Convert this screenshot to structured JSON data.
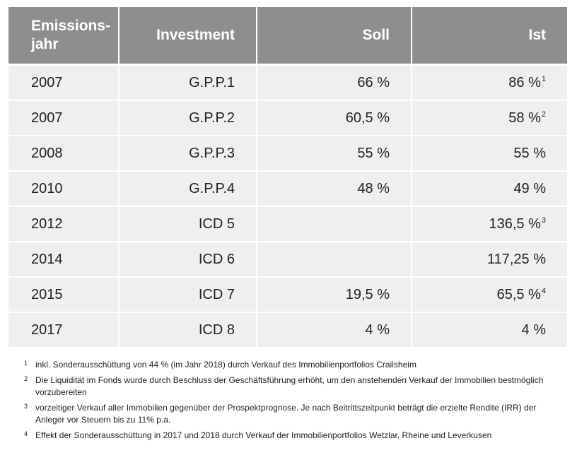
{
  "table": {
    "headers": {
      "year": "Emissions-\njahr",
      "year_line1": "Emissions-",
      "year_line2": "jahr",
      "investment": "Investment",
      "soll": "Soll",
      "ist": "Ist"
    },
    "rows": [
      {
        "year": "2007",
        "investment": "G.P.P.1",
        "soll": "66 %",
        "ist": "86 %",
        "ist_fn": "1"
      },
      {
        "year": "2007",
        "investment": "G.P.P.2",
        "soll": "60,5 %",
        "ist": "58 %",
        "ist_fn": "2"
      },
      {
        "year": "2008",
        "investment": "G.P.P.3",
        "soll": "55 %",
        "ist": "55 %",
        "ist_fn": ""
      },
      {
        "year": "2010",
        "investment": "G.P.P.4",
        "soll": "48 %",
        "ist": "49 %",
        "ist_fn": ""
      },
      {
        "year": "2012",
        "investment": "ICD 5",
        "soll": "",
        "ist": "136,5 %",
        "ist_fn": "3"
      },
      {
        "year": "2014",
        "investment": "ICD 6",
        "soll": "",
        "ist": "117,25 %",
        "ist_fn": ""
      },
      {
        "year": "2015",
        "investment": "ICD 7",
        "soll": "19,5 %",
        "ist": "65,5 %",
        "ist_fn": "4"
      },
      {
        "year": "2017",
        "investment": "ICD 8",
        "soll": "4 %",
        "ist": "4 %",
        "ist_fn": ""
      }
    ]
  },
  "footnotes": [
    {
      "num": "1",
      "text": "inkl. Sonderausschüttung von 44 % (im Jahr 2018) durch Verkauf des Immobilienportfolios Crailsheim"
    },
    {
      "num": "2",
      "text": "Die Liquidität im Fonds wurde durch Beschluss der Geschäftsführung erhöht, um den anstehenden Verkauf der Immobilien bestmöglich vorzubereiten"
    },
    {
      "num": "3",
      "text": "vorzeitiger Verkauf aller Immobilien gegenüber der Prospektprognose. Je nach Beitrittszeitpunkt beträgt die erzielte Rendite (IRR) der Anleger vor Steuern bis zu 11% p.a."
    },
    {
      "num": "4",
      "text": "Effekt der Sonderausschüttung in 2017 und 2018 durch Verkauf der Immobilienportfolios Wetzlar, Rheine und Leverkusen"
    }
  ],
  "colors": {
    "header_bg": "#8e8e8e",
    "row_bg": "#efefef",
    "text": "#222222"
  }
}
